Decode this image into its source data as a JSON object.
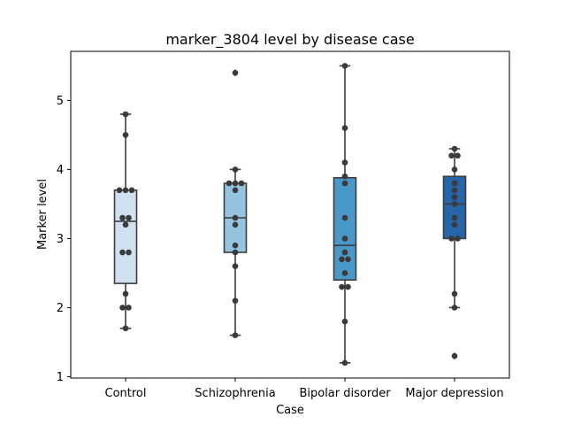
{
  "chart_data": {
    "type": "box",
    "title": "marker_3804 level by disease case",
    "xlabel": "Case",
    "ylabel": "Marker level",
    "categories": [
      "Control",
      "Schizophrenia",
      "Bipolar disorder",
      "Major depression"
    ],
    "yticks": [
      1,
      2,
      3,
      4,
      5
    ],
    "ylim": [
      0.98,
      5.71
    ],
    "grid": false,
    "colors": [
      "#d1e0f1",
      "#94c4df",
      "#4a98c9",
      "#2666a8"
    ],
    "point_color": "#3a3a3a",
    "series": [
      {
        "name": "Control",
        "box": {
          "whisker_low": 1.7,
          "q1": 2.35,
          "median": 3.25,
          "q3": 3.7,
          "whisker_high": 4.8,
          "outliers": []
        },
        "points": [
          1.7,
          2.0,
          2.0,
          2.2,
          2.8,
          2.8,
          3.2,
          3.3,
          3.3,
          3.7,
          3.7,
          3.7,
          4.5,
          4.8
        ]
      },
      {
        "name": "Schizophrenia",
        "box": {
          "whisker_low": 1.6,
          "q1": 2.8,
          "median": 3.3,
          "q3": 3.8,
          "whisker_high": 4.0,
          "outliers": [
            5.4
          ]
        },
        "points": [
          1.6,
          2.1,
          2.6,
          2.8,
          2.9,
          3.2,
          3.3,
          3.7,
          3.8,
          3.8,
          3.8,
          4.0,
          5.4
        ]
      },
      {
        "name": "Bipolar disorder",
        "box": {
          "whisker_low": 1.2,
          "q1": 2.4,
          "median": 2.9,
          "q3": 3.88,
          "whisker_high": 5.5,
          "outliers": []
        },
        "points": [
          1.2,
          1.8,
          2.3,
          2.3,
          2.5,
          2.7,
          2.7,
          2.8,
          3.0,
          3.3,
          3.8,
          3.9,
          4.1,
          4.6,
          5.5
        ]
      },
      {
        "name": "Major depression",
        "box": {
          "whisker_low": 2.0,
          "q1": 3.0,
          "median": 3.5,
          "q3": 3.9,
          "whisker_high": 4.3,
          "outliers": [
            1.3
          ]
        },
        "points": [
          1.3,
          2.0,
          2.2,
          3.0,
          3.0,
          3.2,
          3.3,
          3.5,
          3.6,
          3.7,
          3.8,
          4.0,
          4.2,
          4.2,
          4.3
        ]
      }
    ]
  }
}
